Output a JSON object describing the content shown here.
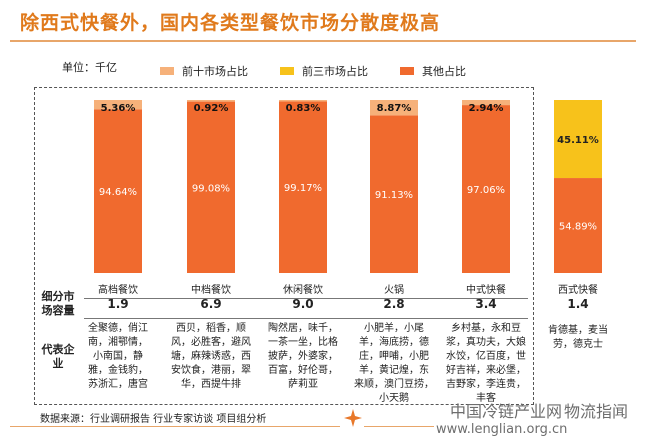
{
  "title": "除西式快餐外，国内各类型餐饮市场分散度极高",
  "unit": "单位：千亿",
  "legend": [
    {
      "label": "前十市场占比",
      "color": "#f6b17a"
    },
    {
      "label": "前三市场占比",
      "color": "#f7c21b"
    },
    {
      "label": "其他占比",
      "color": "#f06a2e"
    }
  ],
  "row_labels": {
    "size": "细分市场容量",
    "companies": "代表企业"
  },
  "chart_data": {
    "type": "bar",
    "stacked": true,
    "ylim": [
      0,
      100
    ],
    "categories": [
      "高档餐饮",
      "中档餐饮",
      "休闲餐饮",
      "火锅",
      "中式快餐",
      "西式快餐"
    ],
    "series": [
      {
        "name": "其他占比",
        "color": "#f06a2e",
        "values": [
          94.64,
          99.08,
          99.17,
          91.13,
          97.06,
          54.89
        ],
        "labels": [
          "94.64%",
          "99.08%",
          "99.17%",
          "91.13%",
          "97.06%",
          "54.89%"
        ]
      },
      {
        "name": "前十市场占比",
        "color": "#f6b17a",
        "values": [
          5.36,
          0.92,
          0.83,
          8.87,
          2.94,
          null
        ],
        "labels": [
          "5.36%",
          "0.92%",
          "0.83%",
          "8.87%",
          "2.94%",
          ""
        ]
      },
      {
        "name": "前三市场占比",
        "color": "#f7c21b",
        "values": [
          null,
          null,
          null,
          null,
          null,
          45.11
        ],
        "labels": [
          "",
          "",
          "",
          "",
          "",
          "45.11%"
        ]
      }
    ],
    "market_size": [
      "1.9",
      "6.9",
      "9.0",
      "2.8",
      "3.4",
      "1.4"
    ],
    "companies": [
      [
        "全聚德，俏江",
        "南，湘鄂情，",
        "小南国，静",
        "雅，金钱豹，",
        "苏浙汇，唐宫"
      ],
      [
        "西贝，稻香，顺",
        "风，必胜客，避风",
        "塘，麻辣诱惑，西",
        "安饮食，港丽，翠",
        "华，西提牛排"
      ],
      [
        "陶然居，味千，",
        "一茶一坐，比格",
        "披萨，外婆家，",
        "百富，好伦哥，",
        "萨莉亚"
      ],
      [
        "小肥羊，小尾",
        "羊，海底捞，德",
        "庄，呷哺，小肥",
        "羊，黄记煌，东",
        "来顺，澳门豆捞，",
        "小天鹅"
      ],
      [
        "乡村基，永和豆",
        "浆，真功夫，大娘",
        "水饺，亿百度，世",
        "好吉祥，来必堡，",
        "吉野家，李连贵，",
        "丰客"
      ],
      [
        "肯德基，麦当",
        "劳，德克士"
      ]
    ]
  },
  "source": "数据来源：行业调研报告 行业专家访谈 项目组分析",
  "watermark": {
    "line1": "中国冷链产业网",
    "line1b": "物流指闻",
    "line2": "www.lenglian.org.cn"
  }
}
